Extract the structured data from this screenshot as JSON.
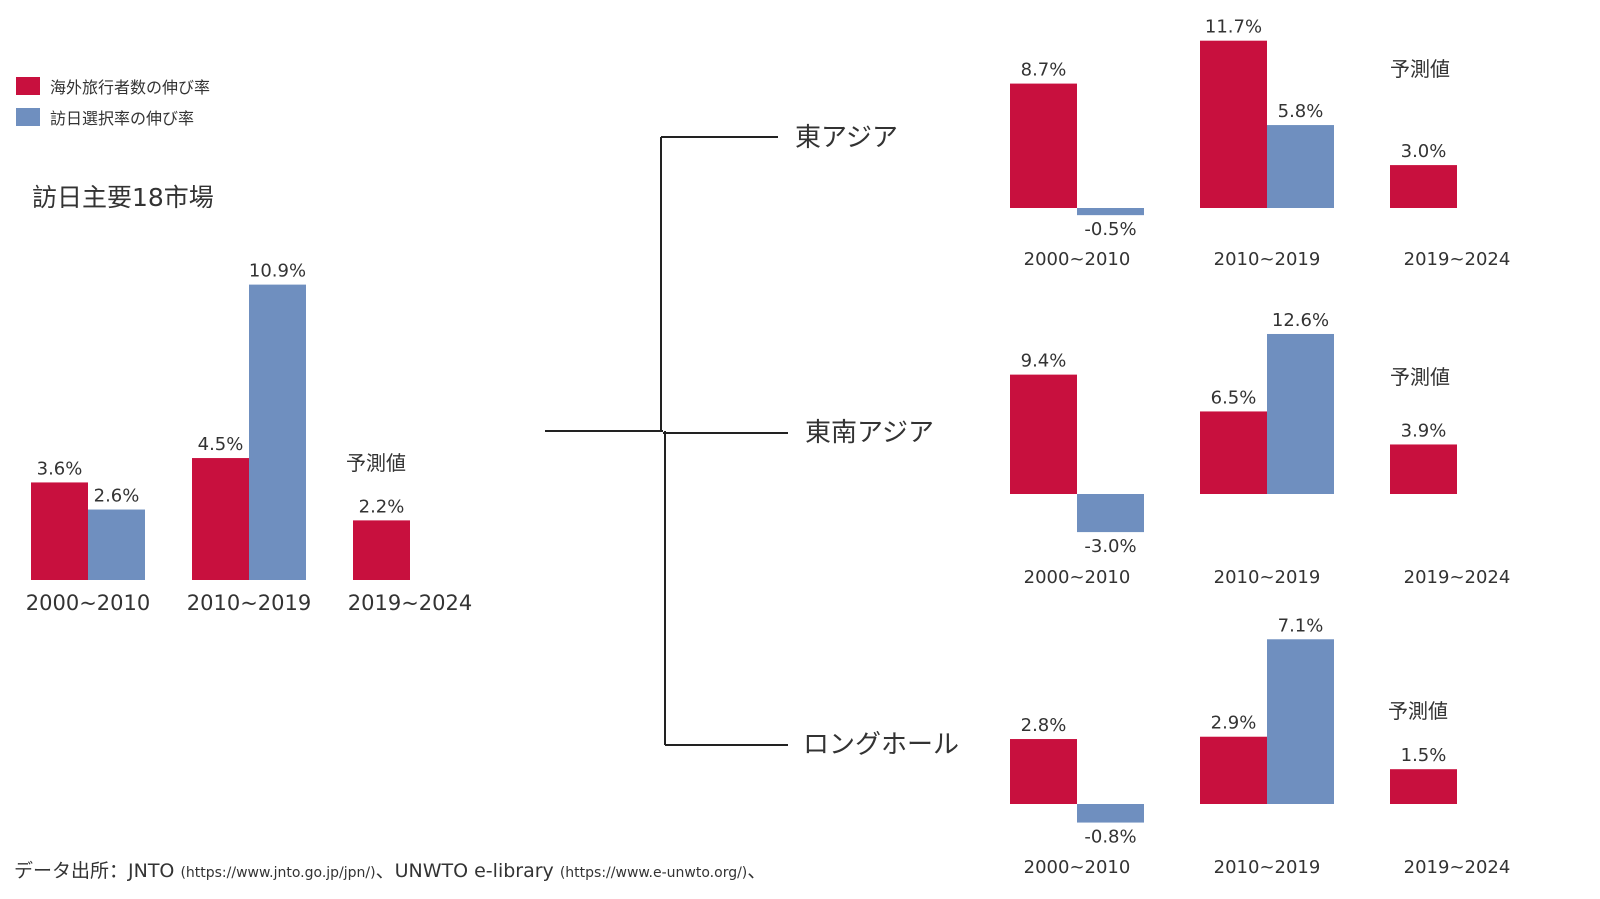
{
  "legend": [
    {
      "label": "海外旅行者数の伸び率",
      "color": "#c8103e"
    },
    {
      "label": "訪日選択率の伸び率",
      "color": "#6f8fbf"
    }
  ],
  "main_title": "訪日主要18市場",
  "source": {
    "prefix": "データ出所：JNTO",
    "jnto_url": "(https://www.jnto.go.jp/jpn/)",
    "mid": "、UNWTO e-library",
    "unwto_url": "(https://www.e-unwto.org/)",
    "suffix": "、"
  },
  "chart_data": [
    {
      "type": "bar",
      "name": "main",
      "title": "訪日主要18市場",
      "categories": [
        "2000~2010",
        "2010~2019",
        "2019~2024"
      ],
      "series": [
        {
          "name": "海外旅行者数の伸び率",
          "values": [
            3.6,
            4.5,
            2.2
          ]
        },
        {
          "name": "訪日選択率の伸び率",
          "values": [
            2.6,
            10.9,
            null
          ]
        }
      ],
      "value_labels": [
        [
          "3.6%",
          "4.5%",
          "2.2%"
        ],
        [
          "2.6%",
          "10.9%",
          ""
        ]
      ],
      "forecast_label": "予測値",
      "unit": "%"
    },
    {
      "type": "bar",
      "name": "east-asia",
      "title": "東アジア",
      "categories": [
        "2000~2010",
        "2010~2019",
        "2019~2024"
      ],
      "series": [
        {
          "name": "海外旅行者数の伸び率",
          "values": [
            8.7,
            11.7,
            3.0
          ]
        },
        {
          "name": "訪日選択率の伸び率",
          "values": [
            -0.5,
            5.8,
            null
          ]
        }
      ],
      "value_labels": [
        [
          "8.7%",
          "11.7%",
          "3.0%"
        ],
        [
          "-0.5%",
          "5.8%",
          ""
        ]
      ],
      "forecast_label": "予測値",
      "unit": "%"
    },
    {
      "type": "bar",
      "name": "southeast-asia",
      "title": "東南アジア",
      "categories": [
        "2000~2010",
        "2010~2019",
        "2019~2024"
      ],
      "series": [
        {
          "name": "海外旅行者数の伸び率",
          "values": [
            9.4,
            6.5,
            3.9
          ]
        },
        {
          "name": "訪日選択率の伸び率",
          "values": [
            -3.0,
            12.6,
            null
          ]
        }
      ],
      "value_labels": [
        [
          "9.4%",
          "6.5%",
          "3.9%"
        ],
        [
          "-3.0%",
          "12.6%",
          ""
        ]
      ],
      "forecast_label": "予測値",
      "unit": "%"
    },
    {
      "type": "bar",
      "name": "long-haul",
      "title": "ロングホール",
      "categories": [
        "2000~2010",
        "2010~2019",
        "2019~2024"
      ],
      "series": [
        {
          "name": "海外旅行者数の伸び率",
          "values": [
            2.8,
            2.9,
            1.5
          ]
        },
        {
          "name": "訪日選択率の伸び率",
          "values": [
            -0.8,
            7.1,
            null
          ]
        }
      ],
      "value_labels": [
        [
          "2.8%",
          "2.9%",
          "1.5%"
        ],
        [
          "-0.8%",
          "7.1%",
          ""
        ]
      ],
      "forecast_label": "予測値",
      "unit": "%"
    }
  ]
}
